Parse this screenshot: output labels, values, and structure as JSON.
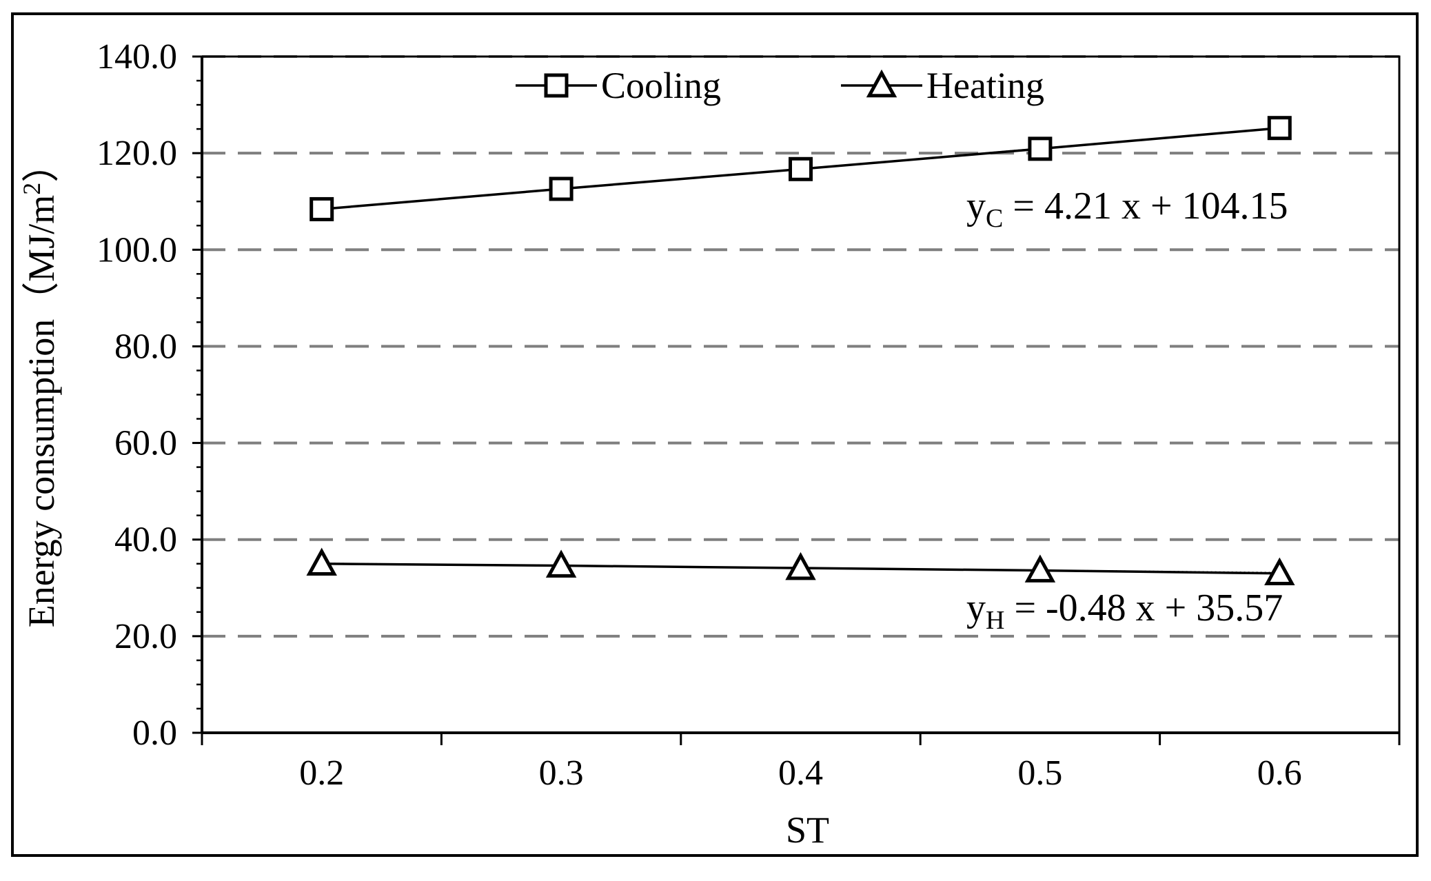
{
  "chart_data": {
    "type": "line",
    "title": "",
    "xlabel": "ST",
    "ylabel": "Energy consumption",
    "ylabel_unit_prefix": "（MJ/m",
    "ylabel_unit_sup": "2",
    "ylabel_unit_suffix": "）",
    "x": [
      0.2,
      0.3,
      0.4,
      0.5,
      0.6
    ],
    "x_tick_labels": [
      "0.2",
      "0.3",
      "0.4",
      "0.5",
      "0.6"
    ],
    "xlim": [
      0.15,
      0.65
    ],
    "ylim": [
      0,
      140
    ],
    "y_ticks": [
      0,
      20,
      40,
      60,
      80,
      100,
      120,
      140
    ],
    "y_tick_labels": [
      "0.0",
      "20.0",
      "40.0",
      "60.0",
      "80.0",
      "100.0",
      "120.0",
      "140.0"
    ],
    "grid": "horizontal dashed",
    "legend_position": "top-center",
    "series": [
      {
        "name": "Cooling",
        "marker": "square",
        "values": [
          108.4,
          112.6,
          116.7,
          120.9,
          125.2
        ],
        "trendline": {
          "slope_per_step": 4.21,
          "intercept": 104.15
        },
        "equation": {
          "y": "y",
          "sub": "C",
          "rest": " = 4.21 x + 104.15"
        }
      },
      {
        "name": "Heating",
        "marker": "triangle",
        "values": [
          35.0,
          34.6,
          34.1,
          33.6,
          33.0
        ],
        "trendline": {
          "slope_per_step": -0.48,
          "intercept": 35.57
        },
        "equation": {
          "y": "y",
          "sub": "H",
          "rest": " = -0.48 x + 35.57"
        }
      }
    ]
  },
  "colors": {
    "line": "#000000",
    "grid": "#7f7f7f",
    "background": "#ffffff",
    "trendline": "#595959"
  }
}
